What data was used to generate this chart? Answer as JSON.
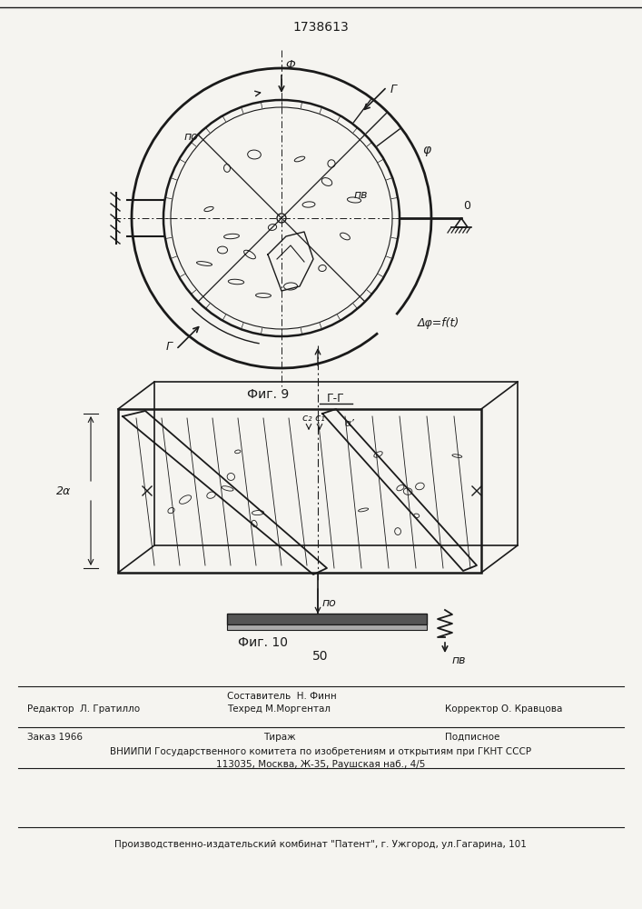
{
  "title": "1738613",
  "fig9_label": "Фиг. 9",
  "fig10_label": "Фиг. 10",
  "section_label": "Г-Г",
  "background_color": "#f5f4f0",
  "line_color": "#1a1a1a",
  "page_number": "50",
  "label_n0": "по",
  "label_ne": "пв",
  "label_phi": "φ",
  "label_delta_phi": "Δφ=f(t)",
  "label_F": "Ф",
  "label_O": "0",
  "label_Gamma": "Г",
  "label_2a": "2α",
  "label_c1c2": "c₂ c₁",
  "label_alpha_prime": "α’",
  "label_n0_bottom": "по"
}
